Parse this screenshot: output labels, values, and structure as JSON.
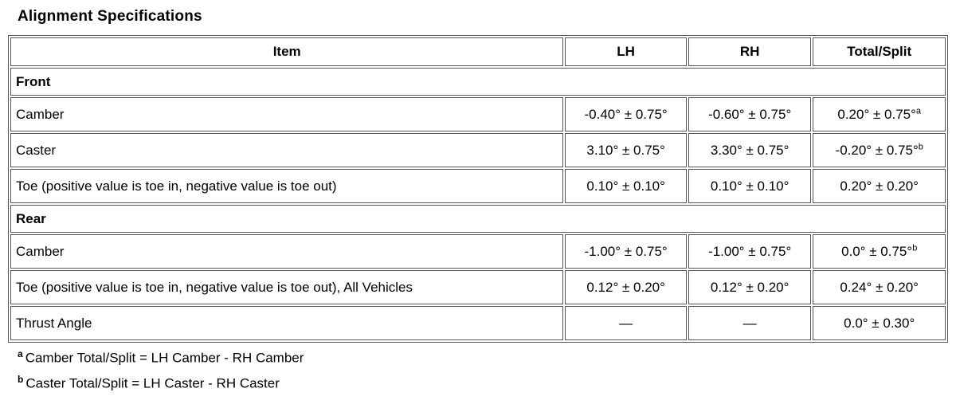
{
  "title": "Alignment Specifications",
  "table": {
    "headers": [
      "Item",
      "LH",
      "RH",
      "Total/Split"
    ],
    "rows": [
      {
        "type": "section",
        "label": "Front"
      },
      {
        "type": "data",
        "item": "Camber",
        "lh": "-0.40° ± 0.75°",
        "rh": "-0.60° ± 0.75°",
        "total": "0.20° ± 0.75°",
        "total_sup": "a"
      },
      {
        "type": "data",
        "item": "Caster",
        "lh": "3.10° ± 0.75°",
        "rh": "3.30° ± 0.75°",
        "total": "-0.20° ± 0.75°",
        "total_sup": "b"
      },
      {
        "type": "data",
        "item": "Toe (positive value is toe in, negative value is toe out)",
        "lh": "0.10° ± 0.10°",
        "rh": "0.10° ± 0.10°",
        "total": "0.20° ± 0.20°",
        "total_sup": ""
      },
      {
        "type": "section",
        "label": "Rear"
      },
      {
        "type": "data",
        "item": "Camber",
        "lh": "-1.00° ± 0.75°",
        "rh": "-1.00° ± 0.75°",
        "total": "0.0° ± 0.75°",
        "total_sup": "b"
      },
      {
        "type": "data",
        "item": "Toe (positive value is toe in, negative value is toe out), All Vehicles",
        "lh": "0.12° ± 0.20°",
        "rh": "0.12° ± 0.20°",
        "total": "0.24° ± 0.20°",
        "total_sup": ""
      },
      {
        "type": "data",
        "item": "Thrust Angle",
        "lh": "—",
        "rh": "—",
        "total": "0.0° ± 0.30°",
        "total_sup": ""
      }
    ]
  },
  "footnotes": [
    {
      "marker": "a",
      "text": "Camber Total/Split = LH Camber - RH Camber"
    },
    {
      "marker": "b",
      "text": "Caster Total/Split = LH Caster - RH Caster"
    }
  ]
}
